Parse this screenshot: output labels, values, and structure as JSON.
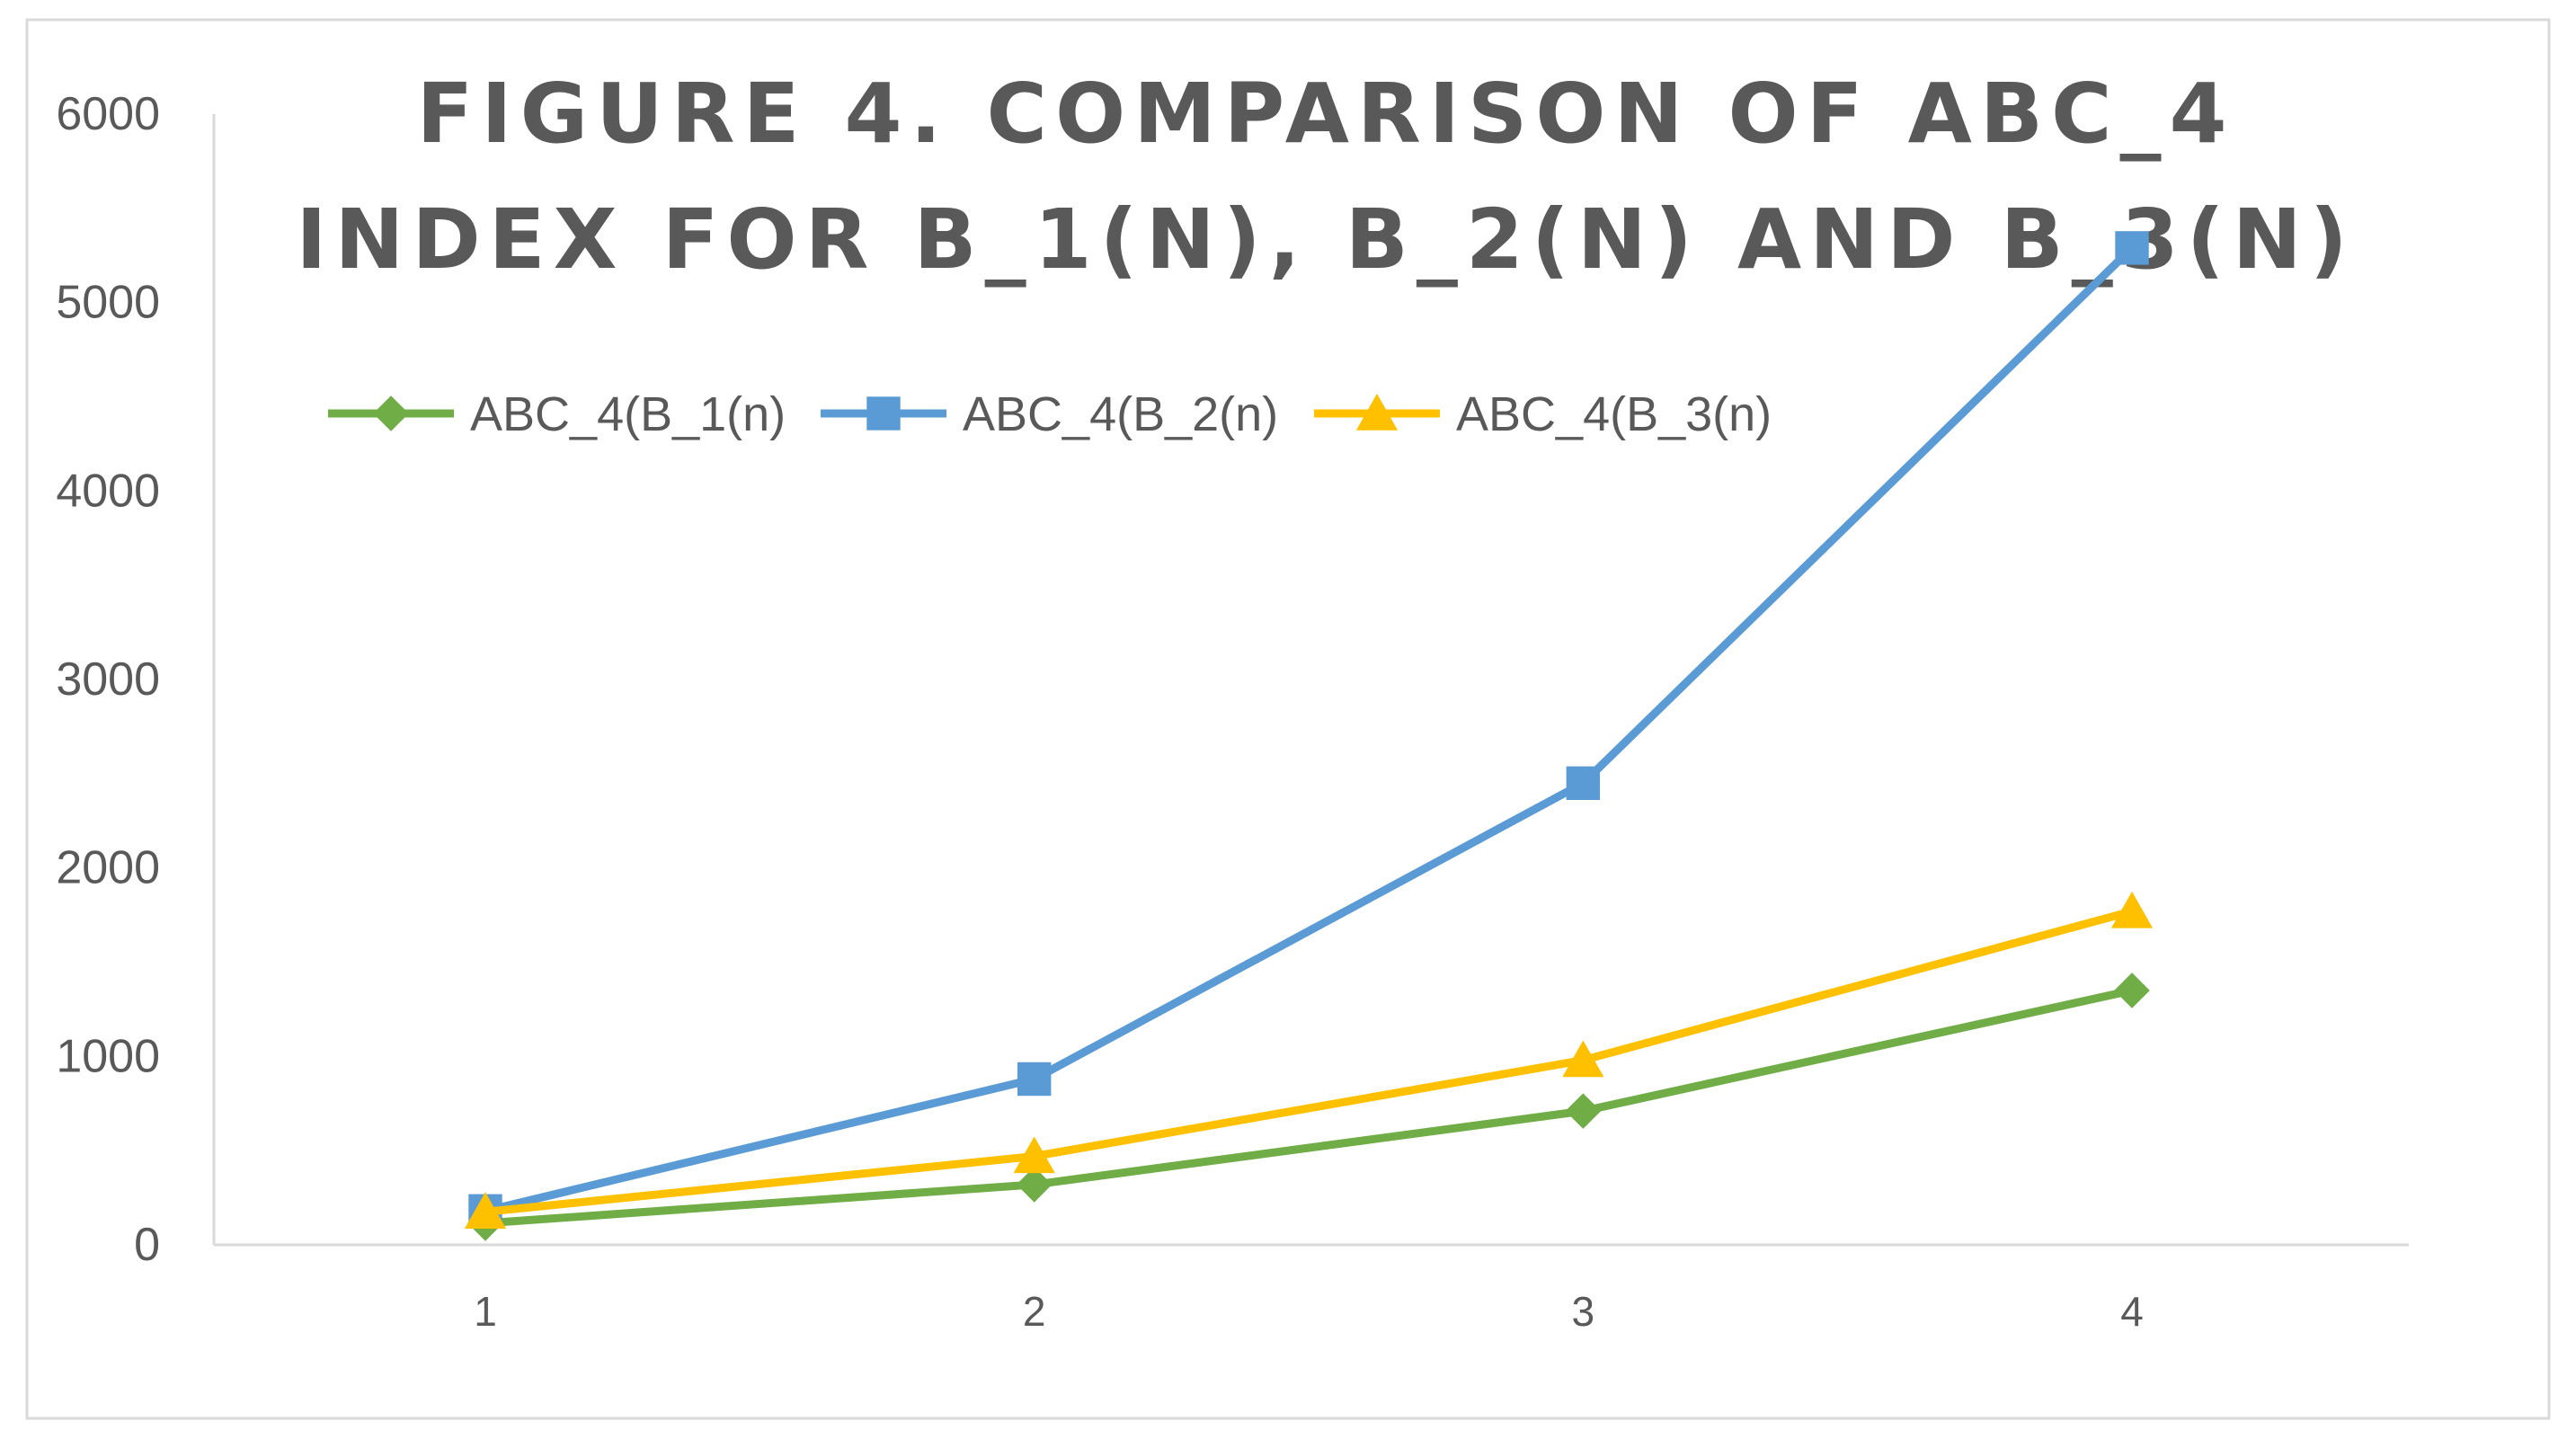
{
  "chart_data": {
    "type": "line",
    "title_lines": [
      "FIGURE 4. COMPARISON OF ABC_4",
      "INDEX FOR B_1(N), B_2(N) AND B_3(N)"
    ],
    "xlabel": "",
    "ylabel": "",
    "categories": [
      "1",
      "2",
      "3",
      "4"
    ],
    "ylim": [
      0,
      6000
    ],
    "yticks": [
      "0",
      "1000",
      "2000",
      "3000",
      "4000",
      "5000",
      "6000"
    ],
    "grid": false,
    "legend_position": "top",
    "series": [
      {
        "name": "ABC_4(B_1(n)",
        "values": [
          115,
          320,
          710,
          1350
        ],
        "color": "#70ad47",
        "marker": "diamond"
      },
      {
        "name": "ABC_4(B_2(n)",
        "values": [
          180,
          880,
          2450,
          5290
        ],
        "color": "#5b9bd5",
        "marker": "square"
      },
      {
        "name": "ABC_4(B_3(n)",
        "values": [
          175,
          470,
          980,
          1770
        ],
        "color": "#ffc000",
        "marker": "triangle"
      }
    ]
  }
}
